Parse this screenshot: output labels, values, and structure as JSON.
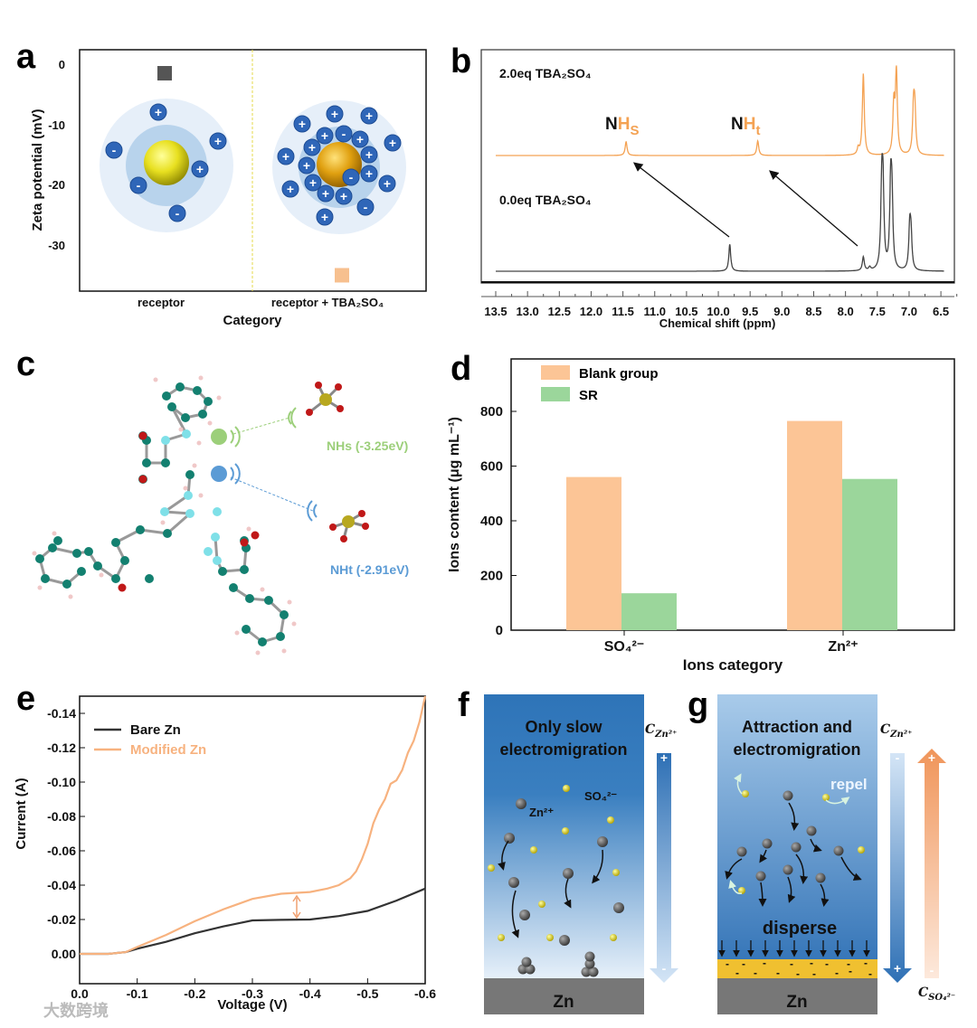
{
  "panel_labels": [
    "a",
    "b",
    "c",
    "d",
    "e",
    "f",
    "g"
  ],
  "colors": {
    "orange": "#f7b27f",
    "orange_nmr": "#f4a253",
    "dark": "#444444",
    "green": "#9bd69b",
    "blue": "#2f6eb6",
    "nhs_green": "#9ccf7a",
    "nht_blue": "#5b9bd5"
  },
  "chart_data": [
    {
      "id": "a",
      "type": "scatter",
      "xlabel": "Category",
      "ylabel": "Zeta potential (mV)",
      "categories": [
        "receptor",
        "receptor + TBA₂SO₄"
      ],
      "values": [
        -1.5,
        -35
      ],
      "point_colors": [
        "#555555",
        "#f7c08f"
      ],
      "yticks": [
        0,
        -10,
        -20,
        -30
      ],
      "ylim": [
        -37.6,
        2.4
      ],
      "inset_charges": [
        "+",
        "-"
      ]
    },
    {
      "id": "b",
      "type": "line",
      "xlabel": "Chemical shift (ppm)",
      "xticks": [
        "13.5",
        "13.0",
        "12.5",
        "12.0",
        "11.5",
        "11.0",
        "10.5",
        "10.0",
        "9.5",
        "9.0",
        "8.5",
        "8.0",
        "7.5",
        "7.0",
        "6.5"
      ],
      "xlim": [
        13.5,
        6.5
      ],
      "series": [
        {
          "name": "2.0eq TBA₂SO₄",
          "color": "#f4a253",
          "peaks": [
            [
              11.45,
              0.17
            ],
            [
              9.38,
              0.18
            ],
            [
              7.8,
              0.08
            ],
            [
              7.72,
              1.0
            ],
            [
              7.24,
              0.6
            ],
            [
              7.2,
              1.0
            ],
            [
              6.93,
              0.55
            ],
            [
              6.91,
              0.5
            ]
          ]
        },
        {
          "name": "0.0eq TBA₂SO₄",
          "color": "#444444",
          "peaks": [
            [
              9.82,
              0.33
            ],
            [
              7.72,
              0.17
            ],
            [
              7.62,
              0.04
            ],
            [
              7.43,
              0.95
            ],
            [
              7.41,
              0.9
            ],
            [
              7.29,
              0.95
            ],
            [
              7.27,
              0.8
            ],
            [
              6.99,
              0.5
            ],
            [
              6.97,
              0.4
            ]
          ]
        }
      ],
      "annotations": {
        "nhs_n": "N",
        "nhs_h": "H",
        "nhs_sub": "S",
        "nht_n": "N",
        "nht_h": "H",
        "nht_sub": "t"
      }
    },
    {
      "id": "d",
      "type": "bar",
      "categories": [
        "SO₄²⁻",
        "Zn²⁺"
      ],
      "series": [
        {
          "name": "Blank group",
          "values": [
            560,
            765
          ],
          "color": "#fcc596"
        },
        {
          "name": "SR",
          "values": [
            135,
            553
          ],
          "color": "#9bd69b"
        }
      ],
      "xlabel": "Ions category",
      "ylabel": "Ions content (μg mL⁻¹)",
      "yticks": [
        0,
        200,
        400,
        600,
        800
      ],
      "ylim": [
        0,
        990
      ],
      "legend": "top-left"
    },
    {
      "id": "e",
      "type": "line",
      "xlabel": "Voltage (V)",
      "ylabel": "Current (A)",
      "xticks": [
        0.0,
        -0.1,
        -0.2,
        -0.3,
        -0.4,
        -0.5,
        -0.6
      ],
      "xtick_labels": [
        "0.0",
        "-0.1",
        "-0.2",
        "-0.3",
        "-0.4",
        "-0.5",
        "-0.6"
      ],
      "yticks": [
        0,
        -0.02,
        -0.04,
        -0.06,
        -0.08,
        -0.1,
        -0.12,
        -0.14
      ],
      "ytick_labels": [
        "0.00",
        "-0.02",
        "-0.04",
        "-0.06",
        "-0.08",
        "-0.10",
        "-0.12",
        "-0.14"
      ],
      "xlim": [
        0,
        -0.6
      ],
      "ylim": [
        0.003,
        -0.151
      ],
      "legend": "top-left",
      "series": [
        {
          "name": "Bare Zn",
          "color": "#333333",
          "x": [
            0,
            -0.05,
            -0.08,
            -0.1,
            -0.15,
            -0.2,
            -0.25,
            -0.3,
            -0.35,
            -0.4,
            -0.45,
            -0.5,
            -0.55,
            -0.6
          ],
          "y": [
            0,
            0,
            -0.001,
            -0.003,
            -0.007,
            -0.012,
            -0.016,
            -0.0195,
            -0.0198,
            -0.02,
            -0.022,
            -0.025,
            -0.031,
            -0.038
          ]
        },
        {
          "name": "Modified Zn",
          "color": "#f7b27f",
          "x": [
            0,
            -0.05,
            -0.08,
            -0.1,
            -0.15,
            -0.2,
            -0.25,
            -0.3,
            -0.35,
            -0.4,
            -0.43,
            -0.45,
            -0.47,
            -0.48,
            -0.49,
            -0.5,
            -0.51,
            -0.52,
            -0.53,
            -0.54,
            -0.55,
            -0.56,
            -0.57,
            -0.58,
            -0.59,
            -0.6
          ],
          "y": [
            0,
            0,
            -0.001,
            -0.004,
            -0.011,
            -0.019,
            -0.026,
            -0.032,
            -0.035,
            -0.036,
            -0.038,
            -0.04,
            -0.044,
            -0.048,
            -0.055,
            -0.064,
            -0.076,
            -0.084,
            -0.09,
            -0.099,
            -0.101,
            -0.107,
            -0.117,
            -0.124,
            -0.135,
            -0.15
          ]
        }
      ]
    }
  ],
  "panel_c": {
    "nhs_label": "NHs (-3.25eV)",
    "nht_label": "NHt (-2.91eV)"
  },
  "panel_f": {
    "title_line1": "Only slow",
    "title_line2": "electromigration",
    "zn_ion": "Zn²⁺",
    "so4_ion": "SO₄²⁻",
    "electrode": "Zn",
    "conc_label": "C",
    "conc_sub": "Zn²⁺",
    "arrow_top": "+",
    "arrow_bottom": "-"
  },
  "panel_g": {
    "title_line1": "Attraction and",
    "title_line2": "electromigration",
    "repel": "repel",
    "disperse": "disperse",
    "electrode": "Zn",
    "conc_label": "C",
    "conc_sub": "Zn²⁺",
    "conc2_sub": "SO₄²⁻",
    "arrow_top": "-",
    "arrow_bottom": "+",
    "arrow2_top": "+",
    "arrow2_bottom": "-"
  },
  "watermark": "大数跨境"
}
